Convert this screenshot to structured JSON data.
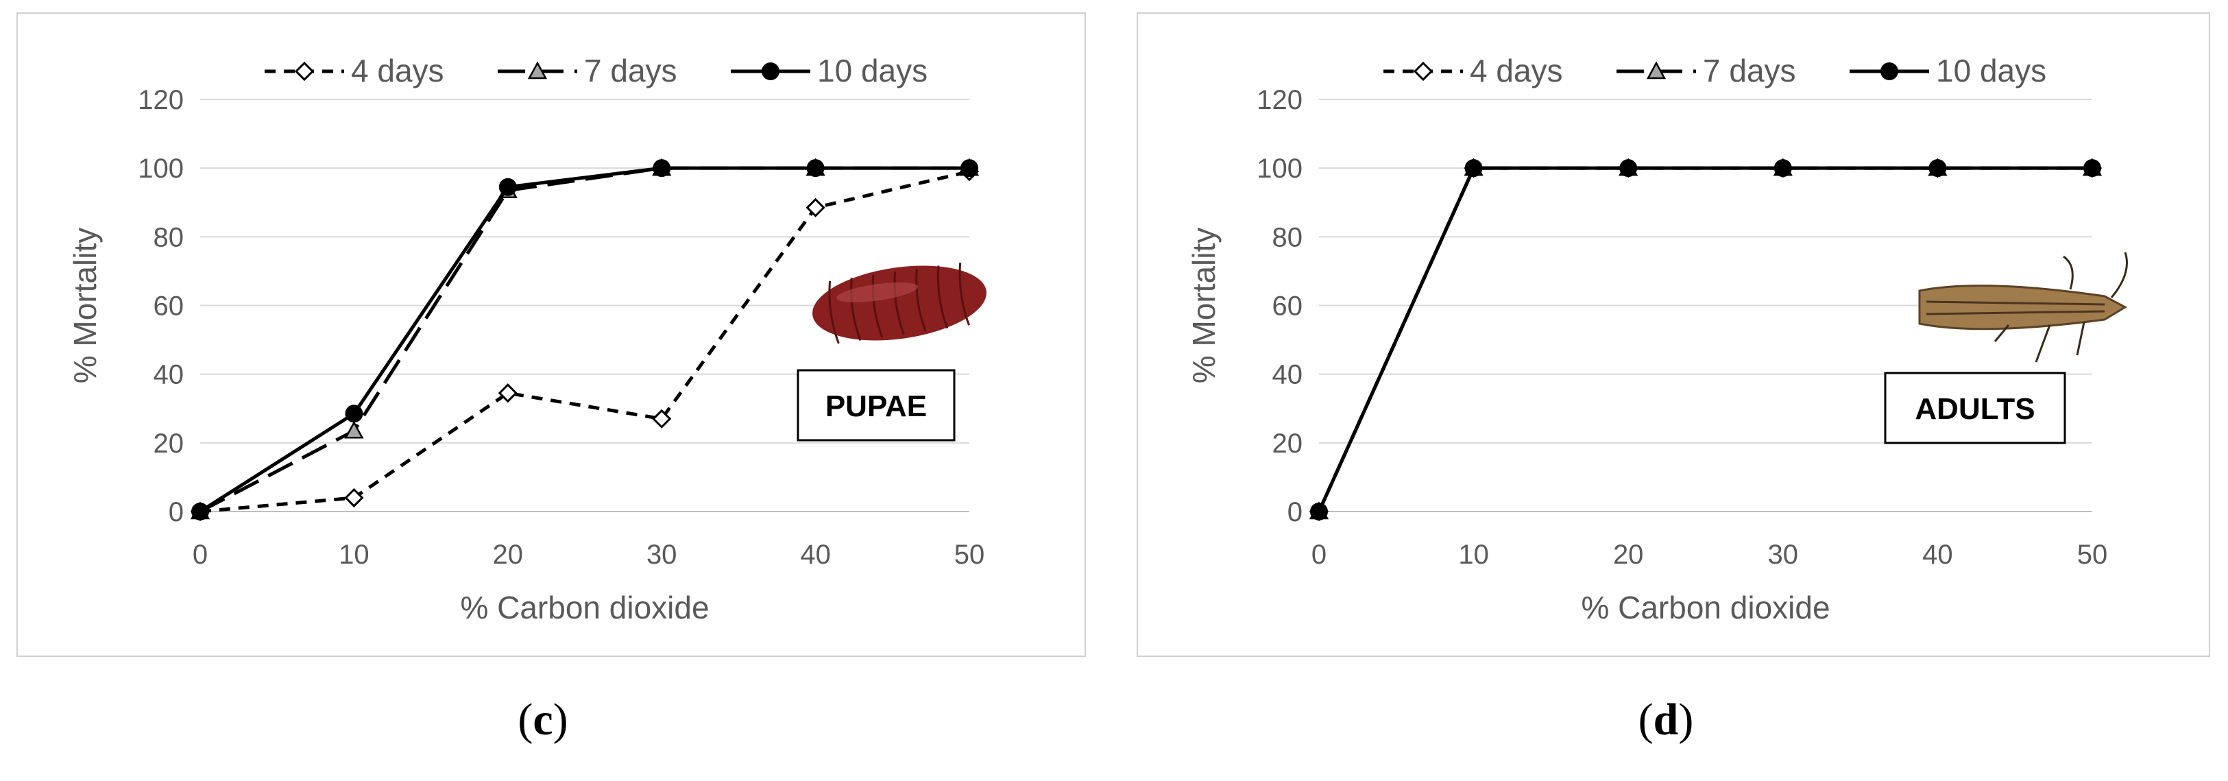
{
  "chart_data": [
    {
      "panel": "c",
      "type": "line",
      "xlabel": "% Carbon dioxide",
      "ylabel": "% Mortality",
      "x": [
        0,
        10,
        20,
        30,
        40,
        50
      ],
      "xlim": [
        0,
        50
      ],
      "ylim": [
        0,
        120
      ],
      "yticks": [
        0,
        20,
        40,
        60,
        80,
        100,
        120
      ],
      "xticks": [
        0,
        10,
        20,
        30,
        40,
        50
      ],
      "grid": true,
      "legend_position": "top",
      "series": [
        {
          "name": "4 days",
          "values": [
            0,
            4,
            34.5,
            27,
            88.5,
            99
          ],
          "line": "short-dash",
          "marker": "diamond-open"
        },
        {
          "name": "7 days",
          "values": [
            0,
            23.5,
            93.5,
            100,
            100,
            100
          ],
          "line": "long-dash",
          "marker": "triangle-gray"
        },
        {
          "name": "10 days",
          "values": [
            0,
            28.5,
            94.5,
            100,
            100,
            100
          ],
          "line": "solid",
          "marker": "circle-filled"
        }
      ],
      "annotation": "PUPAE",
      "image_icon": "pupa-image"
    },
    {
      "panel": "d",
      "type": "line",
      "xlabel": "% Carbon dioxide",
      "ylabel": "% Mortality",
      "x": [
        0,
        10,
        20,
        30,
        40,
        50
      ],
      "xlim": [
        0,
        50
      ],
      "ylim": [
        0,
        120
      ],
      "yticks": [
        0,
        20,
        40,
        60,
        80,
        100,
        120
      ],
      "xticks": [
        0,
        10,
        20,
        30,
        40,
        50
      ],
      "grid": true,
      "legend_position": "top",
      "series": [
        {
          "name": "4 days",
          "values": [
            0,
            100,
            100,
            100,
            100,
            100
          ],
          "line": "short-dash",
          "marker": "diamond-open"
        },
        {
          "name": "7 days",
          "values": [
            0,
            100,
            100,
            100,
            100,
            100
          ],
          "line": "long-dash",
          "marker": "triangle-gray"
        },
        {
          "name": "10 days",
          "values": [
            0,
            100,
            100,
            100,
            100,
            100
          ],
          "line": "solid",
          "marker": "circle-filled"
        }
      ],
      "annotation": "ADULTS",
      "image_icon": "moth-image"
    }
  ],
  "captions": {
    "c": "c",
    "d": "d"
  },
  "colors": {
    "axis_text": "#595959",
    "grid": "#d9d9d9",
    "line": "#000000",
    "triangle_fill": "#a6a6a6"
  }
}
